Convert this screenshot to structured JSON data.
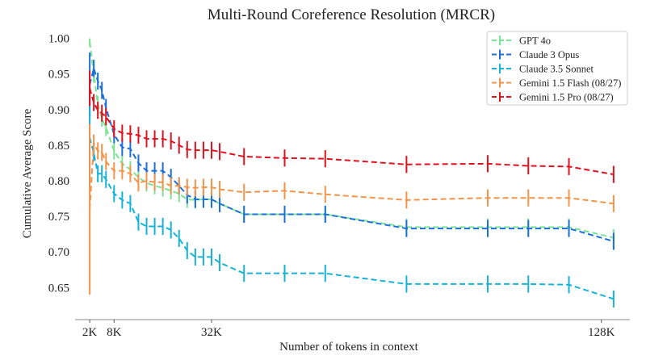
{
  "chart_data": {
    "type": "line",
    "title": "Multi-Round Coreference Resolution (MRCR)",
    "xlabel": "Number of tokens in context",
    "ylabel": "Cumulative Average Score",
    "xlim": [
      -1.6,
      135
    ],
    "ylim": [
      0.605,
      1.02
    ],
    "grid": false,
    "legend_position": "top-right",
    "x_ticks": [
      {
        "value": 2,
        "label": "2K"
      },
      {
        "value": 8,
        "label": "8K"
      },
      {
        "value": 32,
        "label": "32K"
      },
      {
        "value": 128,
        "label": "128K"
      }
    ],
    "y_ticks": [
      {
        "value": 0.65,
        "label": "0.65"
      },
      {
        "value": 0.7,
        "label": "0.70"
      },
      {
        "value": 0.75,
        "label": "0.75"
      },
      {
        "value": 0.8,
        "label": "0.80"
      },
      {
        "value": 0.85,
        "label": "0.85"
      },
      {
        "value": 0.9,
        "label": "0.90"
      },
      {
        "value": 0.95,
        "label": "0.95"
      },
      {
        "value": 1.0,
        "label": "1.00"
      }
    ],
    "x": [
      2,
      3,
      4,
      5,
      6,
      8,
      10,
      12,
      14,
      16,
      18,
      20,
      22,
      24,
      26,
      28,
      30,
      32,
      34,
      40,
      50,
      60,
      80,
      100,
      110,
      120,
      131
    ],
    "error_bar": 0.012,
    "series": [
      {
        "name": "GPT 4o",
        "color": "#7be396",
        "first_point_error": 0.005,
        "values": [
          0.995,
          0.95,
          0.907,
          0.888,
          0.875,
          0.842,
          0.824,
          0.816,
          0.805,
          0.797,
          0.793,
          0.79,
          0.786,
          0.782,
          0.774,
          0.773,
          0.774,
          0.774,
          0.768,
          0.753,
          0.753,
          0.753,
          0.735,
          0.735,
          0.735,
          0.735,
          0.72
        ]
      },
      {
        "name": "Claude 3 Opus",
        "color": "#1c6fd8",
        "first_point_error": 0.045,
        "values": [
          0.935,
          0.958,
          0.94,
          0.927,
          0.903,
          0.865,
          0.847,
          0.845,
          0.825,
          0.814,
          0.814,
          0.814,
          0.805,
          0.793,
          0.78,
          0.774,
          0.774,
          0.774,
          0.768,
          0.753,
          0.753,
          0.753,
          0.733,
          0.733,
          0.733,
          0.733,
          0.715
        ]
      },
      {
        "name": "Claude 3.5 Sonnet",
        "color": "#17b2d8",
        "first_point_error": 0.07,
        "values": [
          0.861,
          0.839,
          0.81,
          0.81,
          0.802,
          0.782,
          0.773,
          0.768,
          0.742,
          0.736,
          0.736,
          0.736,
          0.731,
          0.719,
          0.702,
          0.693,
          0.693,
          0.693,
          0.685,
          0.67,
          0.67,
          0.67,
          0.655,
          0.655,
          0.655,
          0.654,
          0.634
        ]
      },
      {
        "name": "Gemini 1.5 Flash (08/27)",
        "color": "#f4944a",
        "first_point_error": 0.12,
        "values": [
          0.76,
          0.853,
          0.842,
          0.84,
          0.827,
          0.814,
          0.814,
          0.81,
          0.797,
          0.8,
          0.798,
          0.798,
          0.793,
          0.793,
          0.791,
          0.79,
          0.791,
          0.791,
          0.788,
          0.784,
          0.786,
          0.781,
          0.773,
          0.776,
          0.776,
          0.776,
          0.768
        ]
      },
      {
        "name": "Gemini 1.5 Pro (08/27)",
        "color": "#e0121e",
        "first_point_error": 0.025,
        "values": [
          0.93,
          0.91,
          0.899,
          0.895,
          0.89,
          0.873,
          0.867,
          0.866,
          0.864,
          0.859,
          0.859,
          0.859,
          0.856,
          0.85,
          0.844,
          0.843,
          0.843,
          0.843,
          0.841,
          0.834,
          0.832,
          0.831,
          0.823,
          0.824,
          0.821,
          0.82,
          0.809
        ]
      }
    ]
  }
}
